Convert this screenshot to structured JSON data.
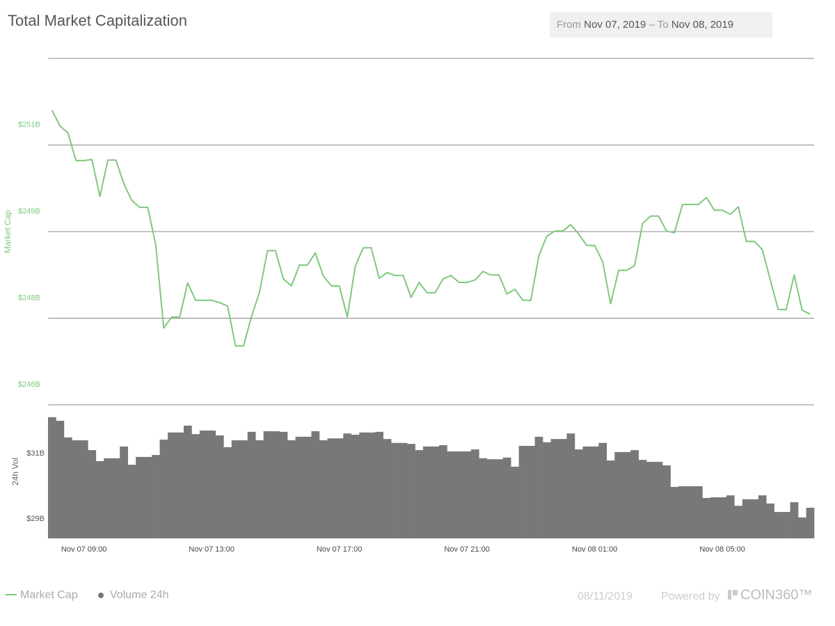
{
  "chart_data": {
    "type": "line",
    "title": "Total Market Capitalization",
    "ylabel": "Market Cap",
    "y2label": "24h Vol",
    "categories": [
      null,
      null,
      null,
      null,
      "Nov 07 09:00",
      null,
      null,
      null,
      null,
      null,
      null,
      null,
      null,
      null,
      null,
      null,
      null,
      null,
      null,
      null,
      "Nov 07 13:00",
      null,
      null,
      null,
      null,
      null,
      null,
      null,
      null,
      null,
      null,
      null,
      null,
      null,
      null,
      null,
      "Nov 07 17:00",
      null,
      null,
      null,
      null,
      null,
      null,
      null,
      null,
      null,
      null,
      null,
      null,
      null,
      null,
      null,
      "Nov 07 21:00",
      null,
      null,
      null,
      null,
      null,
      null,
      null,
      null,
      null,
      null,
      null,
      null,
      null,
      null,
      null,
      "Nov 08 01:00",
      null,
      null,
      null,
      null,
      null,
      null,
      null,
      null,
      null,
      null,
      null,
      null,
      null,
      null,
      null,
      "Nov 08 05:00",
      null,
      null,
      null,
      null,
      null,
      null,
      null,
      null,
      null,
      null,
      null
    ],
    "series": [
      {
        "name": "Market Cap",
        "type": "line",
        "color": "#7ec87b",
        "values": [
          251.1,
          250.83,
          250.71,
          250.23,
          250.23,
          250.25,
          249.61,
          250.24,
          250.24,
          249.83,
          249.54,
          249.42,
          249.42,
          248.77,
          247.33,
          247.52,
          247.52,
          248.11,
          247.81,
          247.81,
          247.81,
          247.77,
          247.71,
          247.02,
          247.02,
          247.53,
          247.95,
          248.67,
          248.67,
          248.18,
          248.06,
          248.42,
          248.42,
          248.63,
          248.23,
          248.06,
          248.06,
          247.52,
          248.4,
          248.72,
          248.72,
          248.19,
          248.29,
          248.24,
          248.24,
          247.86,
          248.12,
          247.94,
          247.94,
          248.18,
          248.24,
          248.12,
          248.12,
          248.16,
          248.31,
          248.25,
          248.25,
          247.92,
          248.0,
          247.81,
          247.81,
          248.58,
          248.92,
          249.01,
          249.01,
          249.12,
          248.96,
          248.76,
          248.76,
          248.48,
          247.75,
          248.33,
          248.33,
          248.41,
          249.14,
          249.27,
          249.27,
          249.01,
          248.98,
          249.47,
          249.47,
          249.47,
          249.59,
          249.37,
          249.37,
          249.3,
          249.43,
          248.83,
          248.83,
          248.69,
          248.17,
          247.65,
          247.65,
          248.25,
          247.64,
          247.57
        ]
      },
      {
        "name": "Volume 24h",
        "type": "bar",
        "axis": "y2",
        "color": "#787878",
        "values": [
          32.12,
          32.01,
          31.5,
          31.41,
          31.41,
          31.11,
          30.77,
          30.86,
          30.86,
          31.22,
          30.66,
          30.9,
          30.9,
          30.96,
          31.43,
          31.65,
          31.65,
          31.86,
          31.6,
          31.71,
          31.71,
          31.56,
          31.2,
          31.41,
          31.41,
          31.67,
          31.41,
          31.69,
          31.69,
          31.67,
          31.41,
          31.52,
          31.52,
          31.69,
          31.41,
          31.47,
          31.47,
          31.62,
          31.58,
          31.65,
          31.65,
          31.67,
          31.45,
          31.33,
          31.33,
          31.3,
          31.11,
          31.22,
          31.22,
          31.26,
          31.07,
          31.07,
          31.07,
          31.13,
          30.86,
          30.83,
          30.83,
          30.88,
          30.6,
          31.24,
          31.24,
          31.52,
          31.35,
          31.45,
          31.45,
          31.62,
          31.13,
          31.22,
          31.22,
          31.33,
          30.79,
          31.05,
          31.05,
          31.11,
          30.81,
          30.75,
          30.75,
          30.64,
          29.98,
          30.0,
          30.0,
          30.0,
          29.64,
          29.66,
          29.66,
          29.72,
          29.4,
          29.6,
          29.6,
          29.72,
          29.47,
          29.21,
          29.21,
          29.51,
          29.04,
          29.34
        ]
      }
    ],
    "ylim": [
      246,
      252
    ],
    "yticks": [
      {
        "value": 246,
        "label": "$246B"
      },
      {
        "value": 247.5,
        "label": "$248B"
      },
      {
        "value": 249,
        "label": "$249B"
      },
      {
        "value": 250.5,
        "label": "$251B"
      }
    ],
    "y2lim": [
      28.4,
      32.5
    ],
    "y2ticks": [
      {
        "value": 29,
        "label": "$29B"
      },
      {
        "value": 31,
        "label": "$31B"
      }
    ],
    "grid": true,
    "legend": "bottom-left"
  },
  "date_range": {
    "from_label": "From",
    "from": "Nov 07, 2019",
    "separator": "–",
    "to_label": "To",
    "to": "Nov 08, 2019"
  },
  "footer": {
    "date": "08/11/2019",
    "powered_by": "Powered by",
    "brand": "COIN360™"
  }
}
